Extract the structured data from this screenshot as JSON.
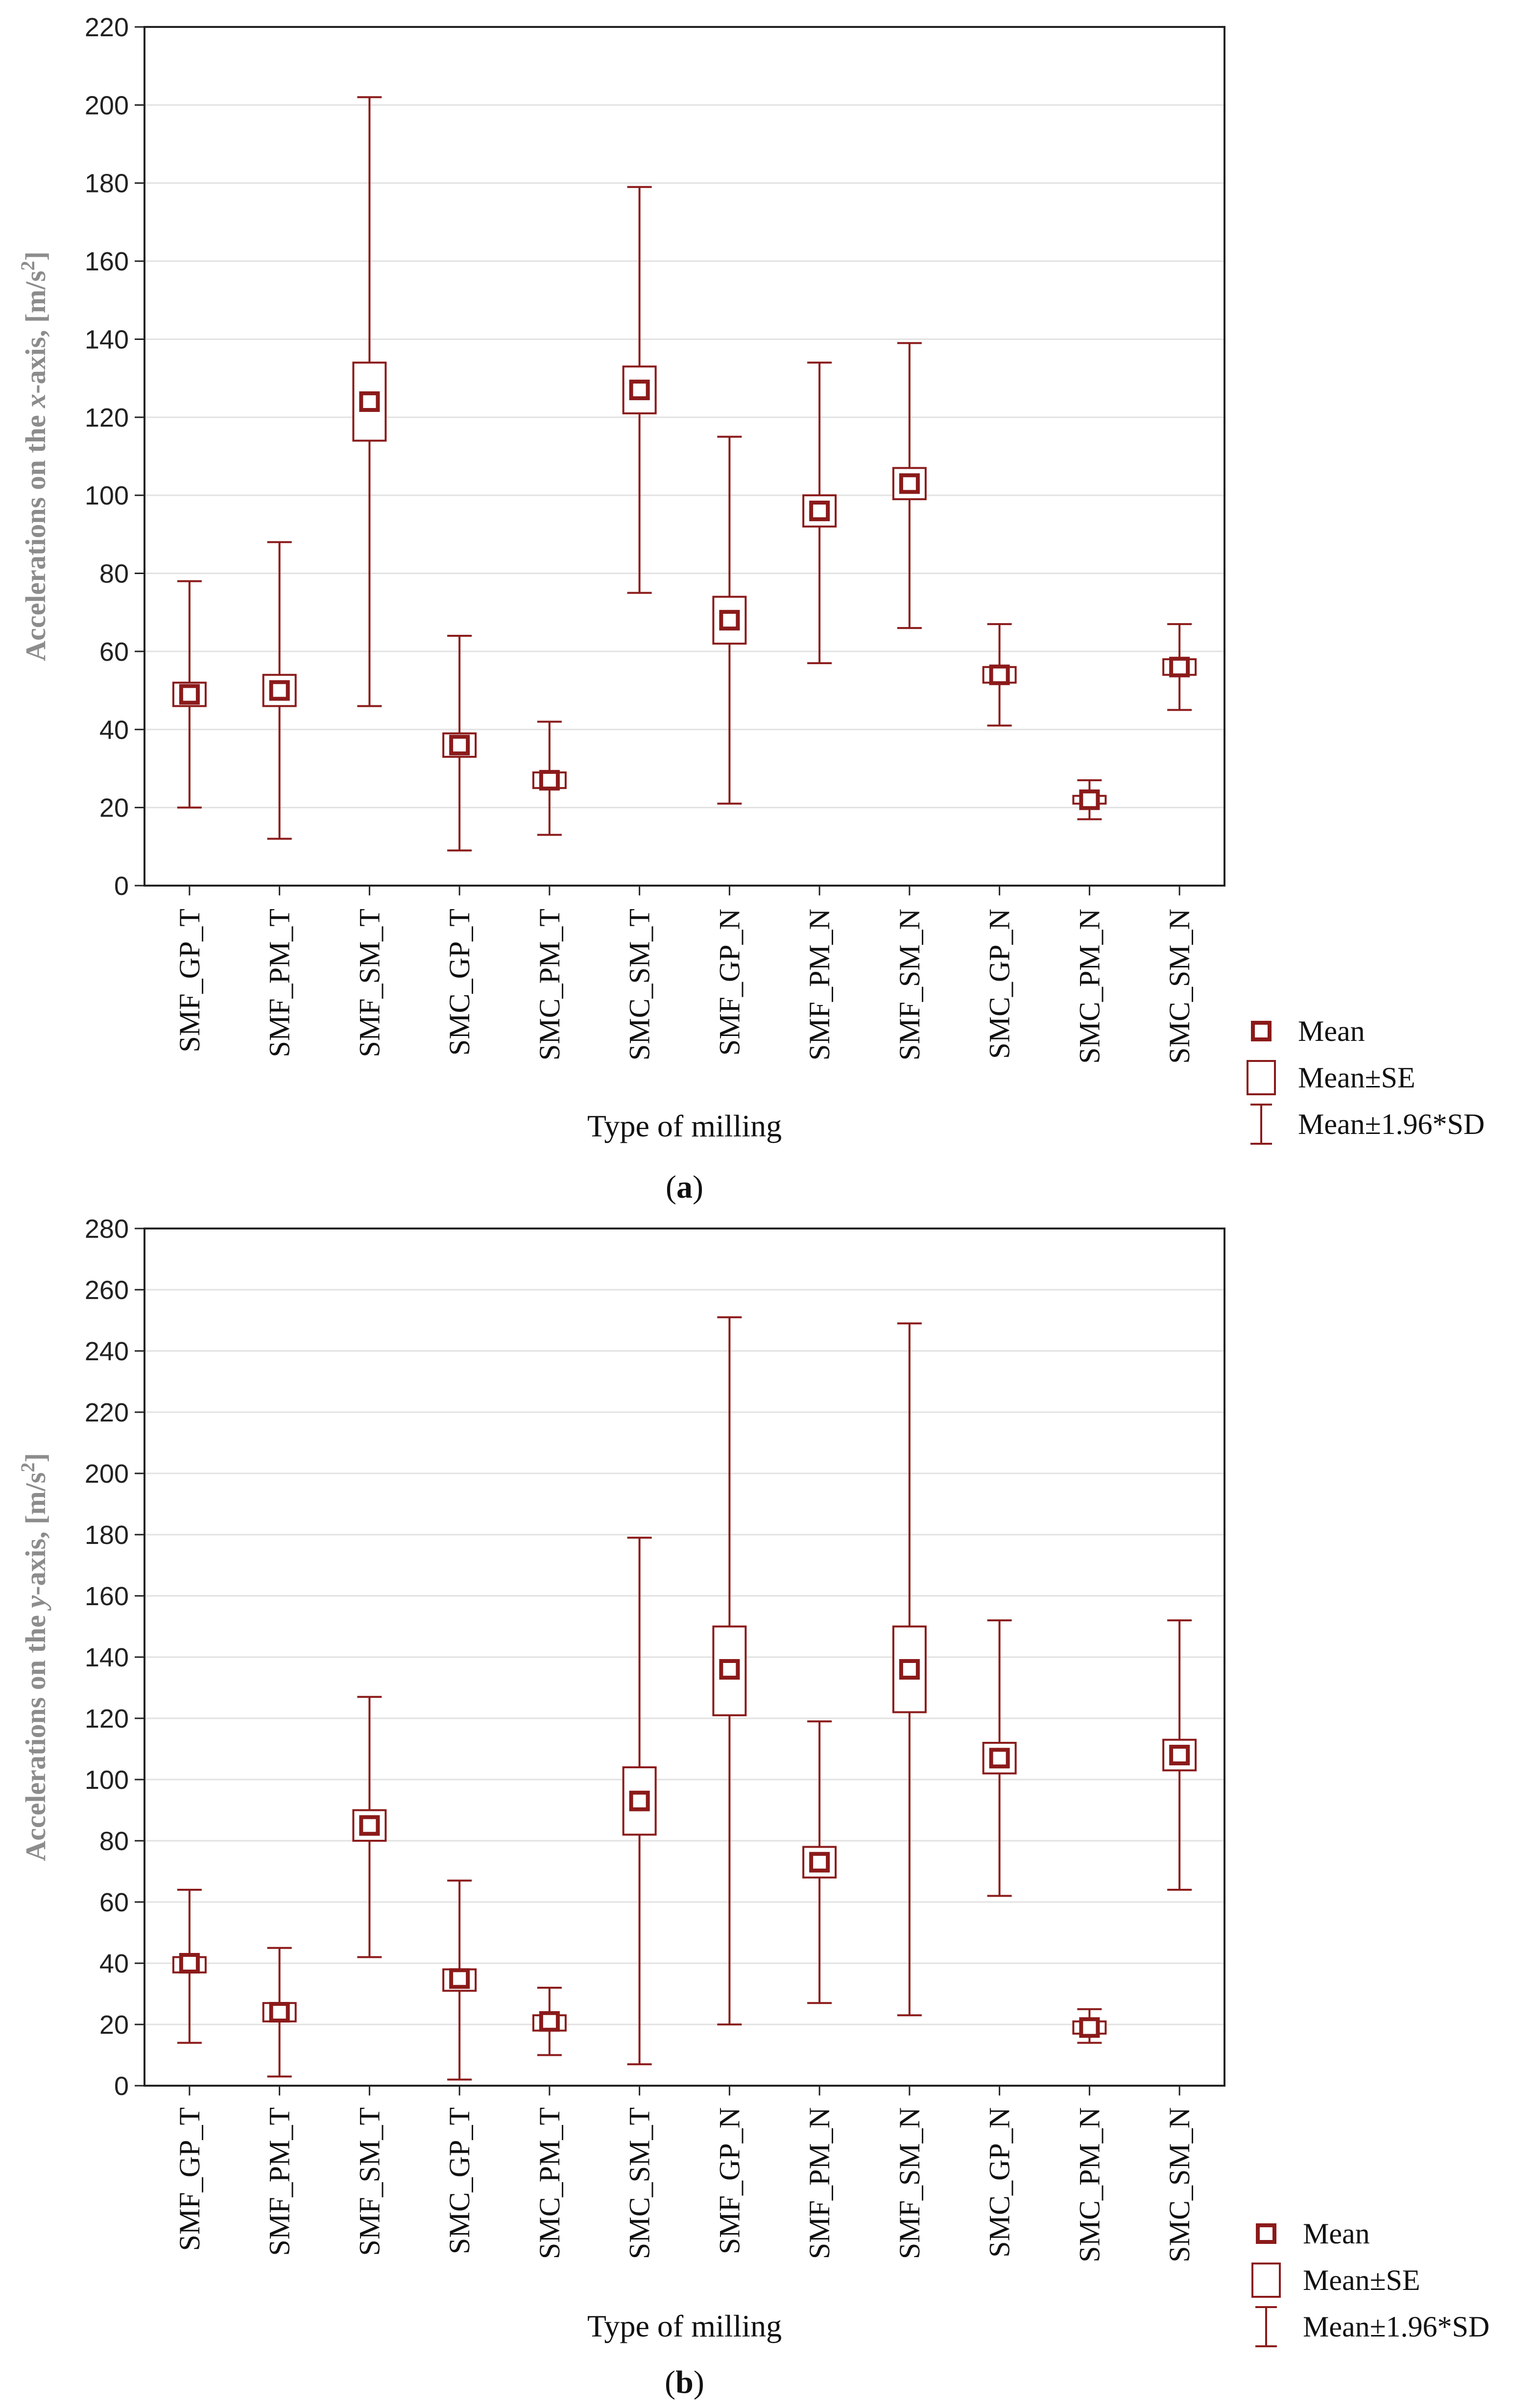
{
  "chart_data": [
    {
      "type": "box",
      "panel_label": "(a)",
      "xlabel": "Type of milling",
      "ylabel_parts": [
        "Accelerations on the ",
        "x",
        "-axis, [m/s",
        "2",
        "]"
      ],
      "ylim": [
        0,
        220
      ],
      "yticks": [
        0,
        20,
        40,
        60,
        80,
        100,
        120,
        140,
        160,
        180,
        200,
        220
      ],
      "categories": [
        "SMF_GP_T",
        "SMF_PM_T",
        "SMF_SM_T",
        "SMC_GP_T",
        "SMC_PM_T",
        "SMC_SM_T",
        "SMF_GP_N",
        "SMF_PM_N",
        "SMF_SM_N",
        "SMC_GP_N",
        "SMC_PM_N",
        "SMC_SM_N"
      ],
      "mean": [
        49,
        50,
        124,
        36,
        27,
        127,
        68,
        96,
        103,
        54,
        22,
        56
      ],
      "se_low": [
        46,
        46,
        114,
        33,
        25,
        121,
        62,
        92,
        99,
        52,
        21,
        54
      ],
      "se_high": [
        52,
        54,
        134,
        39,
        29,
        133,
        74,
        100,
        107,
        56,
        23,
        58
      ],
      "sd_low": [
        20,
        12,
        46,
        9,
        13,
        75,
        21,
        57,
        66,
        41,
        17,
        45
      ],
      "sd_high": [
        78,
        88,
        202,
        64,
        42,
        179,
        115,
        134,
        139,
        67,
        27,
        67
      ],
      "legend": [
        "Mean",
        "Mean±SE",
        "Mean±1.96*SD"
      ]
    },
    {
      "type": "box",
      "panel_label": "(b)",
      "xlabel": "Type of milling",
      "ylabel_parts": [
        "Accelerations on the ",
        "y",
        "-axis, [m/s",
        "2",
        "]"
      ],
      "ylim": [
        0,
        280
      ],
      "yticks": [
        0,
        20,
        40,
        60,
        80,
        100,
        120,
        140,
        160,
        180,
        200,
        220,
        240,
        260,
        280
      ],
      "categories": [
        "SMF_GP_T",
        "SMF_PM_T",
        "SMF_SM_T",
        "SMC_GP_T",
        "SMC_PM_T",
        "SMC_SM_T",
        "SMF_GP_N",
        "SMF_PM_N",
        "SMF_SM_N",
        "SMC_GP_N",
        "SMC_PM_N",
        "SMC_SM_N"
      ],
      "mean": [
        40,
        24,
        85,
        35,
        21,
        93,
        136,
        73,
        136,
        107,
        19,
        108
      ],
      "se_low": [
        37,
        21,
        80,
        31,
        18,
        82,
        121,
        68,
        122,
        102,
        17,
        103
      ],
      "se_high": [
        42,
        27,
        90,
        38,
        23,
        104,
        150,
        78,
        150,
        112,
        21,
        113
      ],
      "sd_low": [
        14,
        3,
        42,
        2,
        10,
        7,
        20,
        27,
        23,
        62,
        14,
        64
      ],
      "sd_high": [
        64,
        45,
        127,
        67,
        32,
        179,
        251,
        119,
        249,
        152,
        25,
        152
      ],
      "legend": [
        "Mean",
        "Mean±SE",
        "Mean±1.96*SD"
      ]
    }
  ],
  "colors": {
    "series": "#8b1a1a",
    "axis": "#222222",
    "grid": "#e2e2e2",
    "ylabel": "#8c8c8c"
  }
}
